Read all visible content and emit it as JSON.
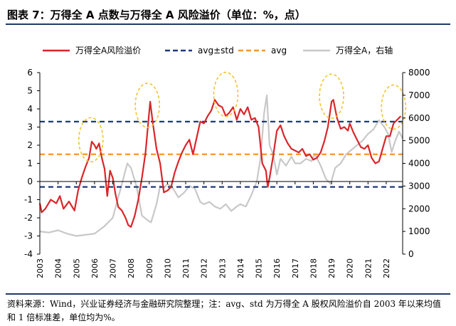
{
  "title": "图表 7：万得全 A 点数与万得全 A 风险溢价（单位：%，点）",
  "note": "资料来源：Wind，兴业证券经济与金融研究院整理；注：avg、std 为万得全 A 股权风险溢价自 2003 年以来均值和 1 倍标准差，单位均为%。",
  "colors": {
    "premium": "#d9262a",
    "std": "#1f3a7a",
    "avg": "#f7952f",
    "index": "#c8c8c8",
    "circle": "#f2c42c"
  },
  "chart_data": {
    "type": "line",
    "legend_position": "top",
    "x_axis": {
      "ticks": [
        "2003",
        "2004",
        "2005",
        "2006",
        "2007",
        "2008",
        "2009",
        "2010",
        "2011",
        "2012",
        "2013",
        "2014",
        "2015",
        "2016",
        "2017",
        "2018",
        "2019",
        "2020",
        "2021",
        "2022"
      ],
      "range": [
        2003,
        2022.9
      ]
    },
    "y_left": {
      "range": [
        -4,
        6
      ],
      "ticks": [
        "-4",
        "-3",
        "-2",
        "-1",
        "0",
        "1",
        "2",
        "3",
        "4",
        "5",
        "6"
      ]
    },
    "y_right": {
      "range": [
        0,
        8000
      ],
      "ticks": [
        "0",
        "1000",
        "2000",
        "3000",
        "4000",
        "5000",
        "6000",
        "7000",
        "8000"
      ]
    },
    "reference_lines": [
      {
        "name": "avg±std",
        "values": [
          3.3,
          -0.3
        ],
        "axis": "left",
        "style": "dashed"
      },
      {
        "name": "avg",
        "values": [
          1.5
        ],
        "axis": "left",
        "style": "dashed"
      }
    ],
    "series": [
      {
        "name": "万得全A风险溢价",
        "axis": "left",
        "x": [
          2003.0,
          2003.1,
          2003.3,
          2003.6,
          2003.9,
          2004.1,
          2004.3,
          2004.6,
          2004.9,
          2005.1,
          2005.3,
          2005.5,
          2005.7,
          2005.85,
          2006.0,
          2006.1,
          2006.25,
          2006.4,
          2006.55,
          2006.7,
          2006.85,
          2007.0,
          2007.15,
          2007.3,
          2007.5,
          2007.7,
          2007.85,
          2008.0,
          2008.2,
          2008.4,
          2008.6,
          2008.8,
          2008.95,
          2009.05,
          2009.2,
          2009.4,
          2009.6,
          2009.8,
          2010.0,
          2010.2,
          2010.4,
          2010.6,
          2010.8,
          2011.0,
          2011.2,
          2011.4,
          2011.6,
          2011.8,
          2012.0,
          2012.2,
          2012.4,
          2012.6,
          2012.8,
          2013.0,
          2013.2,
          2013.4,
          2013.6,
          2013.8,
          2014.0,
          2014.2,
          2014.4,
          2014.6,
          2014.8,
          2015.0,
          2015.2,
          2015.4,
          2015.5,
          2015.6,
          2015.8,
          2016.0,
          2016.2,
          2016.4,
          2016.6,
          2016.8,
          2017.0,
          2017.2,
          2017.4,
          2017.6,
          2017.8,
          2018.0,
          2018.2,
          2018.4,
          2018.6,
          2018.8,
          2019.0,
          2019.1,
          2019.3,
          2019.5,
          2019.7,
          2019.9,
          2020.0,
          2020.2,
          2020.4,
          2020.6,
          2020.8,
          2021.0,
          2021.2,
          2021.4,
          2021.6,
          2021.8,
          2022.0,
          2022.2,
          2022.4,
          2022.6,
          2022.8
        ],
        "y": [
          -1.2,
          -1.7,
          -1.5,
          -1.0,
          -1.2,
          -0.8,
          -1.5,
          -1.1,
          -1.6,
          -0.5,
          0.2,
          0.8,
          1.3,
          2.2,
          2.0,
          1.8,
          2.1,
          1.3,
          0.7,
          -0.8,
          0.6,
          0.2,
          -0.7,
          -1.4,
          -1.6,
          -2.0,
          -2.4,
          -2.5,
          -1.9,
          -1.0,
          0.2,
          1.6,
          3.3,
          4.4,
          3.2,
          1.8,
          1.0,
          -0.6,
          -0.5,
          -0.3,
          0.5,
          1.1,
          1.6,
          2.0,
          2.3,
          1.5,
          2.4,
          3.3,
          3.2,
          3.6,
          3.9,
          4.5,
          4.2,
          4.1,
          3.6,
          3.8,
          4.1,
          3.4,
          4.0,
          3.7,
          4.1,
          3.4,
          3.5,
          3.0,
          1.0,
          0.6,
          -0.3,
          0.2,
          1.4,
          2.8,
          3.1,
          2.5,
          2.1,
          1.8,
          1.7,
          1.6,
          1.8,
          1.4,
          1.5,
          1.2,
          1.3,
          1.6,
          2.2,
          3.0,
          4.4,
          4.5,
          3.5,
          2.9,
          3.0,
          2.8,
          3.2,
          2.7,
          2.3,
          1.9,
          1.8,
          2.0,
          1.3,
          1.0,
          1.1,
          1.8,
          2.5,
          2.5,
          3.2,
          3.4,
          3.6
        ]
      },
      {
        "name": "万得全A，右轴",
        "axis": "right",
        "x": [
          2003.0,
          2003.5,
          2004.0,
          2004.5,
          2005.0,
          2005.5,
          2006.0,
          2006.5,
          2007.0,
          2007.4,
          2007.8,
          2008.0,
          2008.3,
          2008.6,
          2008.9,
          2009.1,
          2009.4,
          2009.6,
          2009.8,
          2010.0,
          2010.3,
          2010.6,
          2010.9,
          2011.2,
          2011.5,
          2011.8,
          2012.0,
          2012.3,
          2012.6,
          2012.9,
          2013.2,
          2013.5,
          2013.8,
          2014.0,
          2014.3,
          2014.6,
          2014.9,
          2015.1,
          2015.3,
          2015.45,
          2015.6,
          2015.8,
          2016.0,
          2016.2,
          2016.5,
          2016.8,
          2017.0,
          2017.3,
          2017.6,
          2017.9,
          2018.1,
          2018.4,
          2018.7,
          2018.95,
          2019.2,
          2019.5,
          2019.8,
          2020.1,
          2020.4,
          2020.7,
          2021.0,
          2021.3,
          2021.6,
          2021.9,
          2022.1,
          2022.3,
          2022.5,
          2022.7,
          2022.9
        ],
        "y": [
          1000,
          950,
          1050,
          900,
          800,
          850,
          900,
          1200,
          1600,
          2800,
          4000,
          3800,
          3000,
          1700,
          1500,
          1400,
          2200,
          3000,
          2900,
          3100,
          2900,
          2500,
          2700,
          3000,
          2900,
          2300,
          2200,
          2300,
          2100,
          2000,
          2200,
          1900,
          2100,
          2200,
          2100,
          2600,
          3200,
          4200,
          6200,
          7000,
          4800,
          4400,
          3500,
          4200,
          3900,
          4300,
          4000,
          4000,
          4200,
          4100,
          4400,
          3900,
          3300,
          3100,
          3800,
          4000,
          4400,
          4600,
          4800,
          5000,
          5300,
          5500,
          5900,
          5600,
          5300,
          4500,
          5000,
          5400,
          5100
        ]
      }
    ],
    "annotations": [
      {
        "type": "circle",
        "center": [
          2005.8,
          2.3
        ]
      },
      {
        "type": "circle",
        "center": [
          2008.9,
          4.2
        ]
      },
      {
        "type": "circle",
        "center": [
          2013.2,
          4.8
        ]
      },
      {
        "type": "circle",
        "center": [
          2019.0,
          4.7
        ]
      },
      {
        "type": "circle",
        "center": [
          2022.4,
          4.1
        ]
      }
    ]
  }
}
